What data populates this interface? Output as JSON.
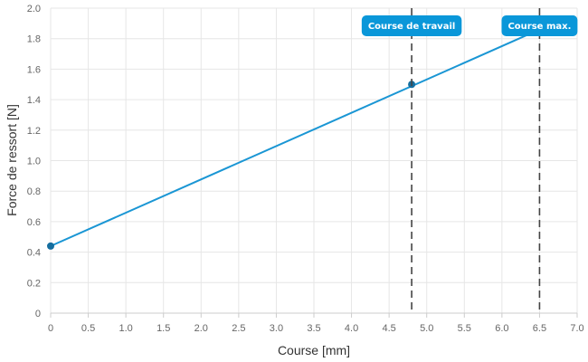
{
  "chart_data": {
    "type": "line",
    "xlabel": "Course [mm]",
    "ylabel": "Force de ressort [N]",
    "xlim": [
      0,
      7
    ],
    "ylim": [
      0,
      2
    ],
    "x_ticks": [
      "0",
      "0.5",
      "1.0",
      "1.5",
      "2.0",
      "2.5",
      "3.0",
      "3.5",
      "4.0",
      "4.5",
      "5.0",
      "5.5",
      "6.0",
      "6.5",
      "7.0"
    ],
    "y_ticks": [
      "0",
      "0.2",
      "0.4",
      "0.6",
      "0.8",
      "1.0",
      "1.2",
      "1.4",
      "1.6",
      "1.8",
      "2.0"
    ],
    "grid": true,
    "series": [
      {
        "line": [
          {
            "x": 0,
            "y": 0.44
          },
          {
            "x": 6.5,
            "y": 1.86
          }
        ],
        "markers": [
          {
            "x": 0,
            "y": 0.44
          },
          {
            "x": 4.8,
            "y": 1.5
          }
        ],
        "color": "#1a96d4"
      }
    ],
    "vertical_lines": [
      {
        "x": 4.8,
        "label": "Course de travail"
      },
      {
        "x": 6.5,
        "label": "Course max."
      }
    ],
    "colors": {
      "grid": "#e6e6e6",
      "axis": "#cccccc",
      "badge": "#0a97d9",
      "marker": "#156e9f",
      "vline": "#444444"
    }
  }
}
